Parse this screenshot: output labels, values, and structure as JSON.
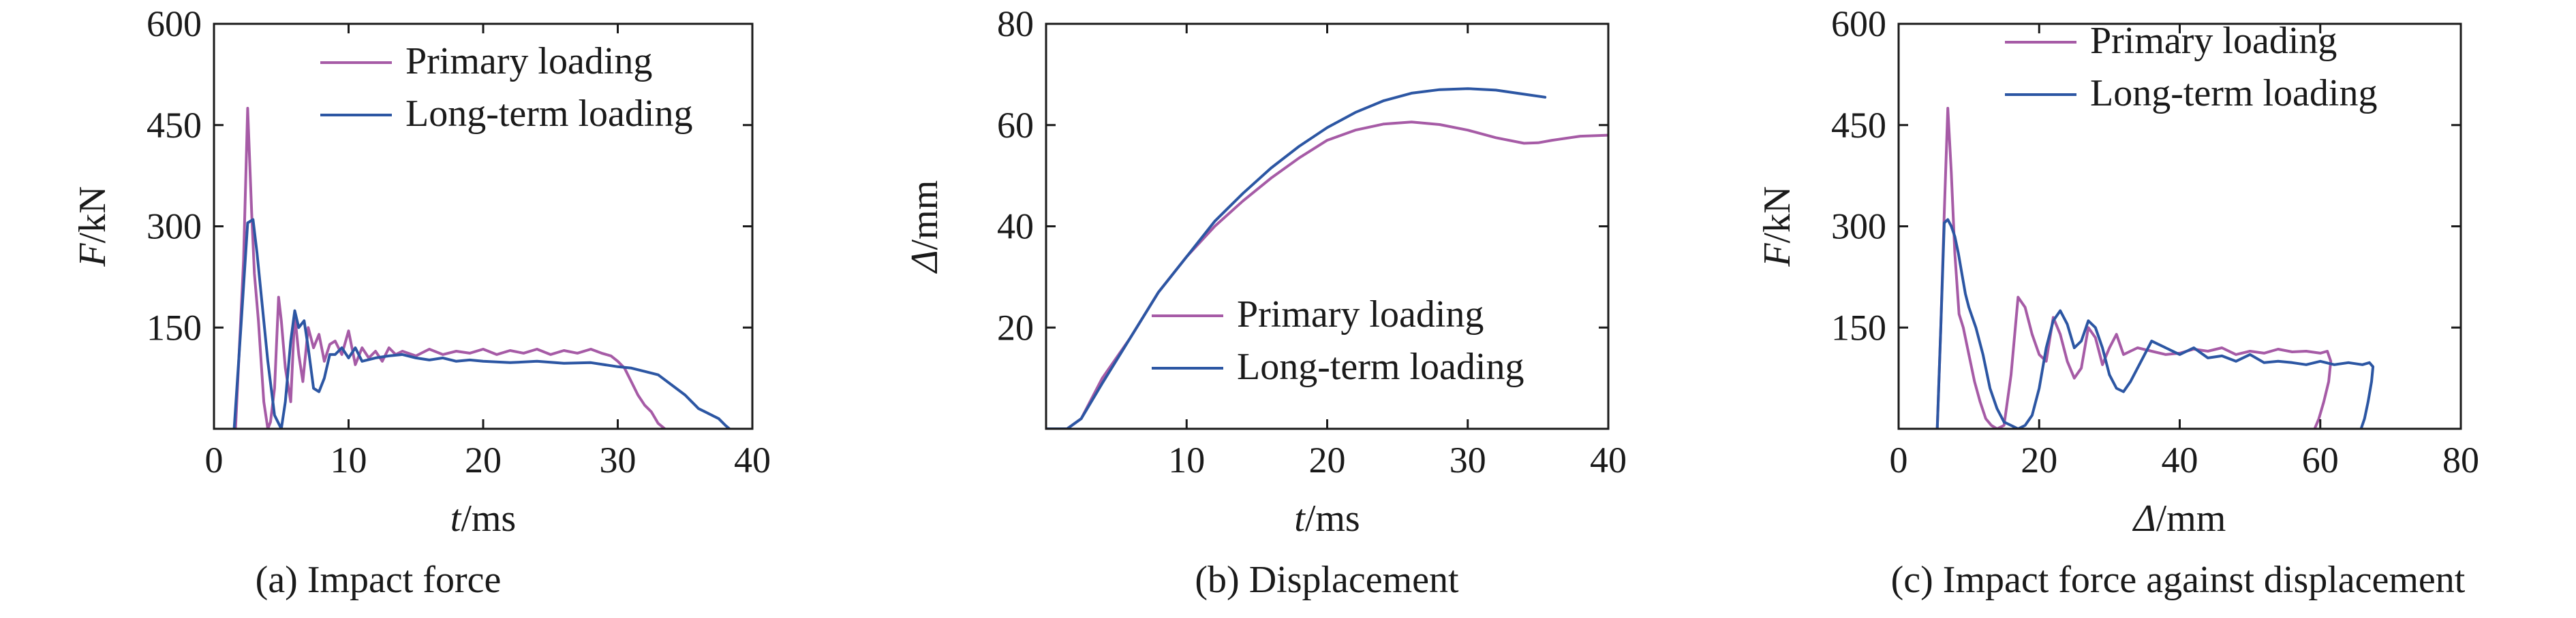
{
  "colors": {
    "primary": "#a65ba6",
    "long_term": "#2c56a3",
    "axis": "#1a1a1a"
  },
  "chart_data": [
    {
      "type": "line",
      "caption": "(a) Impact force",
      "xlabel_italic": "t",
      "xlabel_unit": "/ms",
      "ylabel_italic": "F",
      "ylabel_unit": "/kN",
      "xlim": [
        0,
        40
      ],
      "ylim": [
        0,
        600
      ],
      "xticks": [
        0,
        10,
        20,
        30,
        40
      ],
      "yticks": [
        150,
        300,
        450,
        600
      ],
      "legend_position": "top-right",
      "series": [
        {
          "name": "Primary loading",
          "color": "#a65ba6",
          "x": [
            1.6,
            2.2,
            2.5,
            2.8,
            3.0,
            3.3,
            3.7,
            4.0,
            4.2,
            4.5,
            4.8,
            5.0,
            5.3,
            5.7,
            6.0,
            6.3,
            6.6,
            7.0,
            7.4,
            7.8,
            8.2,
            8.6,
            9.0,
            9.5,
            10.0,
            10.5,
            11.0,
            11.5,
            12.0,
            12.5,
            13.0,
            13.5,
            14.0,
            15.0,
            16.0,
            17.0,
            18.0,
            19.0,
            20.0,
            21.0,
            22.0,
            23.0,
            24.0,
            25.0,
            26.0,
            27.0,
            28.0,
            28.8,
            29.5,
            30.0,
            30.5,
            31.0,
            31.5,
            32.0,
            32.5,
            33.0,
            33.5
          ],
          "y": [
            0,
            250,
            475,
            320,
            230,
            160,
            40,
            0,
            10,
            60,
            195,
            160,
            90,
            40,
            170,
            110,
            70,
            150,
            120,
            140,
            100,
            125,
            130,
            110,
            145,
            95,
            120,
            105,
            115,
            100,
            120,
            110,
            115,
            108,
            118,
            110,
            115,
            112,
            118,
            110,
            116,
            112,
            118,
            110,
            116,
            112,
            118,
            112,
            108,
            100,
            90,
            70,
            50,
            35,
            25,
            8,
            0
          ]
        },
        {
          "name": "Long-term loading",
          "color": "#2c56a3",
          "x": [
            1.5,
            2.0,
            2.5,
            2.9,
            3.2,
            3.6,
            4.0,
            4.5,
            5.0,
            5.3,
            5.7,
            6.0,
            6.3,
            6.7,
            7.0,
            7.4,
            7.8,
            8.2,
            8.6,
            9.0,
            9.5,
            10.0,
            10.5,
            11.0,
            12.0,
            13.0,
            14.0,
            15.0,
            16.0,
            17.0,
            18.0,
            19.0,
            20.0,
            22.0,
            24.0,
            26.0,
            28.0,
            30.0,
            31.0,
            32.0,
            33.0,
            34.0,
            35.0,
            35.5,
            36.0,
            36.5,
            37.0,
            37.5,
            38.0,
            38.3
          ],
          "y": [
            0,
            150,
            305,
            310,
            260,
            180,
            100,
            20,
            0,
            40,
            130,
            175,
            150,
            160,
            120,
            60,
            55,
            75,
            110,
            110,
            120,
            105,
            120,
            100,
            105,
            108,
            110,
            105,
            102,
            105,
            100,
            102,
            100,
            98,
            100,
            97,
            98,
            92,
            90,
            85,
            80,
            65,
            50,
            40,
            30,
            25,
            20,
            15,
            5,
            0
          ]
        }
      ]
    },
    {
      "type": "line",
      "caption": "(b) Displacement",
      "xlabel_italic": "t",
      "xlabel_unit": "/ms",
      "ylabel_italic": "Δ",
      "ylabel_unit": "/mm",
      "xlim": [
        0,
        40
      ],
      "ylim": [
        0,
        80
      ],
      "xticks": [
        10,
        20,
        30,
        40
      ],
      "yticks": [
        20,
        40,
        60,
        80
      ],
      "legend_position": "bottom-right",
      "series": [
        {
          "name": "Primary loading",
          "color": "#a65ba6",
          "x": [
            0,
            1.5,
            2.5,
            4.0,
            6.0,
            8.0,
            10.0,
            12.0,
            14.0,
            16.0,
            18.0,
            20.0,
            22.0,
            24.0,
            26.0,
            28.0,
            30.0,
            32.0,
            34.0,
            35.0,
            36.0,
            38.0,
            40.0
          ],
          "y": [
            0,
            0,
            2,
            10,
            18,
            27,
            34,
            40,
            45,
            49.5,
            53.5,
            57,
            59,
            60.2,
            60.6,
            60.1,
            59,
            57.5,
            56.4,
            56.5,
            57,
            57.8,
            58
          ]
        },
        {
          "name": "Long-term loading",
          "color": "#2c56a3",
          "x": [
            0,
            1.5,
            2.5,
            4.0,
            6.0,
            8.0,
            10.0,
            12.0,
            14.0,
            16.0,
            18.0,
            20.0,
            22.0,
            24.0,
            26.0,
            28.0,
            30.0,
            32.0,
            34.0,
            35.5
          ],
          "y": [
            0,
            0,
            2,
            9,
            18,
            27,
            34,
            41,
            46.5,
            51.5,
            55.8,
            59.5,
            62.5,
            64.8,
            66.3,
            67,
            67.2,
            66.9,
            66.1,
            65.5
          ]
        }
      ]
    },
    {
      "type": "line",
      "caption": "(c) Impact force against displacement",
      "xlabel_italic": "Δ",
      "xlabel_unit": "/mm",
      "ylabel_italic": "F",
      "ylabel_unit": "/kN",
      "xlim": [
        0,
        80
      ],
      "ylim": [
        0,
        600
      ],
      "xticks": [
        0,
        20,
        40,
        60,
        80
      ],
      "yticks": [
        150,
        300,
        450,
        600
      ],
      "legend_position": "top-right",
      "series": [
        {
          "name": "Primary loading",
          "color": "#a65ba6",
          "x": [
            5.5,
            6.0,
            6.5,
            7.0,
            7.5,
            8.0,
            8.6,
            9.2,
            10.0,
            10.8,
            11.6,
            12.4,
            13.2,
            14.0,
            15.0,
            16.0,
            17.0,
            18.0,
            19.0,
            20.0,
            21.0,
            22.0,
            23.0,
            24.0,
            25.0,
            26.0,
            27.0,
            28.0,
            29.0,
            30.0,
            31.0,
            32.0,
            34.0,
            36.0,
            38.0,
            40.0,
            42.0,
            44.0,
            46.0,
            48.0,
            50.0,
            52.0,
            54.0,
            56.0,
            58.0,
            60.0,
            61.0,
            61.5,
            61.2,
            60.5,
            59.8,
            59.2
          ],
          "y": [
            0,
            150,
            320,
            475,
            380,
            260,
            170,
            150,
            110,
            70,
            40,
            15,
            5,
            0,
            5,
            80,
            195,
            180,
            140,
            110,
            100,
            165,
            140,
            100,
            75,
            90,
            150,
            135,
            95,
            120,
            140,
            110,
            120,
            115,
            110,
            112,
            118,
            115,
            120,
            110,
            115,
            112,
            118,
            114,
            115,
            112,
            115,
            100,
            70,
            40,
            15,
            0
          ]
        },
        {
          "name": "Long-term loading",
          "color": "#2c56a3",
          "x": [
            5.5,
            6.0,
            6.5,
            7.0,
            7.5,
            8.0,
            8.5,
            9.0,
            9.5,
            10.0,
            11.0,
            12.0,
            13.0,
            14.0,
            15.0,
            16.0,
            17.0,
            18.0,
            19.0,
            20.0,
            21.0,
            22.0,
            23.0,
            24.0,
            25.0,
            26.0,
            27.0,
            28.0,
            29.0,
            30.0,
            31.0,
            32.0,
            33.0,
            34.0,
            36.0,
            38.0,
            40.0,
            42.0,
            44.0,
            46.0,
            48.0,
            50.0,
            52.0,
            54.0,
            56.0,
            58.0,
            60.0,
            62.0,
            64.0,
            66.0,
            67.0,
            67.5,
            67.3,
            66.8,
            66.3,
            65.8
          ],
          "y": [
            0,
            150,
            305,
            310,
            300,
            285,
            260,
            230,
            200,
            180,
            150,
            110,
            60,
            30,
            10,
            5,
            0,
            5,
            20,
            60,
            120,
            160,
            175,
            155,
            120,
            130,
            160,
            150,
            120,
            80,
            60,
            55,
            70,
            90,
            130,
            120,
            110,
            120,
            105,
            108,
            100,
            110,
            98,
            100,
            98,
            95,
            100,
            95,
            98,
            95,
            98,
            92,
            70,
            40,
            15,
            0
          ]
        }
      ]
    }
  ]
}
